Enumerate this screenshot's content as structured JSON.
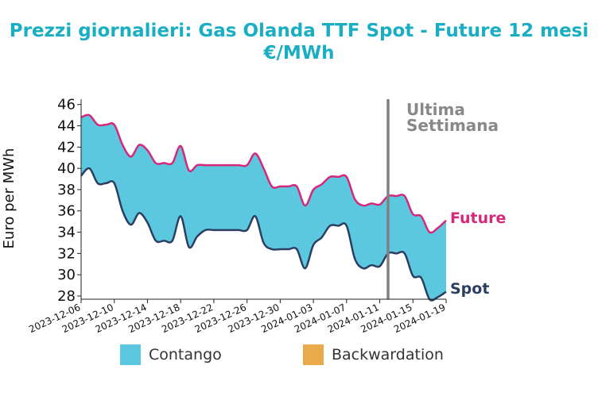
{
  "chart_data": {
    "type": "area",
    "title": "Prezzi giornalieri: Gas Olanda TTF Spot - Future 12 mesi",
    "subtitle": "€/MWh",
    "ylabel": "Euro per MWh",
    "xlabel": "",
    "ylim": [
      27.7,
      46.5
    ],
    "yticks": [
      28,
      30,
      32,
      34,
      36,
      38,
      40,
      42,
      44,
      46
    ],
    "xlim": [
      "2023-12-06",
      "2024-01-19"
    ],
    "xticks": [
      "2023-12-06",
      "2023-12-10",
      "2023-12-14",
      "2023-12-18",
      "2023-12-22",
      "2023-12-26",
      "2023-12-30",
      "2024-01-03",
      "2024-01-07",
      "2024-01-11",
      "2024-01-15",
      "2024-01-19"
    ],
    "annotation": "Ultima\nSettimana",
    "annotation_date": "2024-01-12",
    "legend": [
      {
        "label": "Contango",
        "color": "#5bc8df"
      },
      {
        "label": "Backwardation",
        "color": "#eaaa4a"
      }
    ],
    "series": [
      {
        "name": "Future",
        "color": "#d6287a",
        "x": [
          "2023-12-06",
          "2023-12-07",
          "2023-12-08",
          "2023-12-09",
          "2023-12-10",
          "2023-12-11",
          "2023-12-12",
          "2023-12-13",
          "2023-12-14",
          "2023-12-15",
          "2023-12-16",
          "2023-12-17",
          "2023-12-18",
          "2023-12-19",
          "2023-12-20",
          "2023-12-21",
          "2023-12-22",
          "2023-12-23",
          "2023-12-24",
          "2023-12-25",
          "2023-12-26",
          "2023-12-27",
          "2023-12-28",
          "2023-12-29",
          "2023-12-30",
          "2023-12-31",
          "2024-01-01",
          "2024-01-02",
          "2024-01-03",
          "2024-01-04",
          "2024-01-05",
          "2024-01-06",
          "2024-01-07",
          "2024-01-08",
          "2024-01-09",
          "2024-01-10",
          "2024-01-11",
          "2024-01-12",
          "2024-01-13",
          "2024-01-14",
          "2024-01-15",
          "2024-01-16",
          "2024-01-17",
          "2024-01-18",
          "2024-01-19"
        ],
        "values": [
          44.8,
          45.0,
          44.1,
          44.1,
          44.1,
          42.2,
          41.1,
          42.2,
          41.7,
          40.5,
          40.5,
          40.5,
          42.1,
          39.8,
          40.3,
          40.3,
          40.3,
          40.3,
          40.3,
          40.3,
          40.3,
          41.4,
          40.0,
          38.3,
          38.3,
          38.3,
          38.3,
          36.5,
          38.0,
          38.5,
          39.2,
          39.2,
          39.2,
          37.1,
          36.5,
          36.7,
          36.6,
          37.4,
          37.4,
          37.4,
          35.7,
          35.5,
          34.0,
          34.4,
          35.1
        ]
      },
      {
        "name": "Spot",
        "color": "#2b3f63",
        "x": [
          "2023-12-06",
          "2023-12-07",
          "2023-12-08",
          "2023-12-09",
          "2023-12-10",
          "2023-12-11",
          "2023-12-12",
          "2023-12-13",
          "2023-12-14",
          "2023-12-15",
          "2023-12-16",
          "2023-12-17",
          "2023-12-18",
          "2023-12-19",
          "2023-12-20",
          "2023-12-21",
          "2023-12-22",
          "2023-12-23",
          "2023-12-24",
          "2023-12-25",
          "2023-12-26",
          "2023-12-27",
          "2023-12-28",
          "2023-12-29",
          "2023-12-30",
          "2023-12-31",
          "2024-01-01",
          "2024-01-02",
          "2024-01-03",
          "2024-01-04",
          "2024-01-05",
          "2024-01-06",
          "2024-01-07",
          "2024-01-08",
          "2024-01-09",
          "2024-01-10",
          "2024-01-11",
          "2024-01-12",
          "2024-01-13",
          "2024-01-14",
          "2024-01-15",
          "2024-01-16",
          "2024-01-17",
          "2024-01-18",
          "2024-01-19"
        ],
        "values": [
          39.3,
          40.0,
          38.6,
          38.6,
          38.6,
          36.0,
          34.7,
          35.8,
          34.9,
          33.2,
          33.2,
          33.2,
          35.5,
          32.6,
          33.6,
          34.2,
          34.2,
          34.2,
          34.2,
          34.2,
          34.2,
          35.5,
          33.0,
          32.4,
          32.4,
          32.4,
          32.4,
          30.6,
          32.8,
          33.5,
          34.6,
          34.6,
          34.6,
          31.5,
          30.6,
          30.9,
          30.8,
          32.0,
          32.0,
          32.0,
          29.9,
          29.7,
          27.7,
          27.9,
          28.4
        ]
      }
    ]
  }
}
